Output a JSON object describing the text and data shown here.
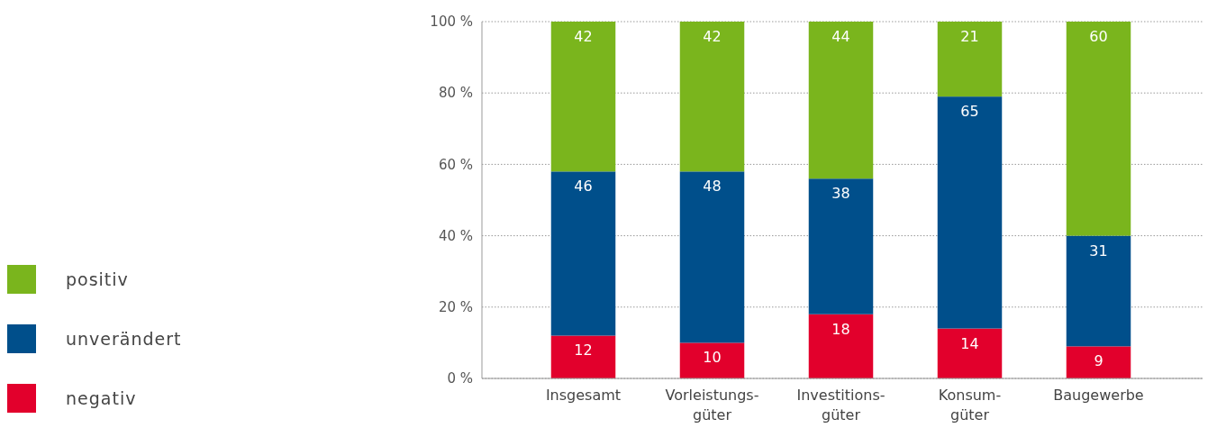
{
  "chart_data": {
    "type": "bar",
    "stacked": true,
    "categories": [
      "Insgesamt",
      "Vorleistungs-\ngüter",
      "Investitions-\ngüter",
      "Konsum-\ngüter",
      "Baugewerbe"
    ],
    "series": [
      {
        "name": "negativ",
        "color": "#e2002c",
        "values": [
          12,
          10,
          18,
          14,
          9
        ]
      },
      {
        "name": "unverändert",
        "color": "#004f8b",
        "values": [
          46,
          48,
          38,
          65,
          31
        ]
      },
      {
        "name": "positiv",
        "color": "#7ab51d",
        "values": [
          42,
          42,
          44,
          21,
          60
        ]
      }
    ],
    "ylim": [
      0,
      100
    ],
    "yticks": [
      {
        "value": 0,
        "label": "0 %"
      },
      {
        "value": 20,
        "label": "20 %"
      },
      {
        "value": 40,
        "label": "40 %"
      },
      {
        "value": 60,
        "label": "60 %"
      },
      {
        "value": 80,
        "label": "80 %"
      },
      {
        "value": 100,
        "label": "100 %"
      }
    ],
    "grid": "y",
    "legend": "left",
    "data_labels": true
  }
}
